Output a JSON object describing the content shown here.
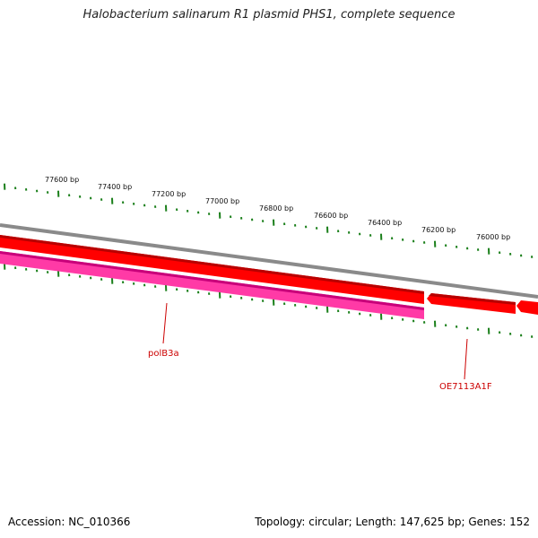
{
  "title": "Halobacterium salinarum R1 plasmid PHS1, complete sequence",
  "footer": {
    "accession": "Accession: NC_010366",
    "summary": "Topology: circular; Length: 147,625 bp; Genes: 152"
  },
  "ruler": {
    "labels": [
      "77600 bp",
      "77400 bp",
      "77200 bp",
      "77000 bp",
      "76800 bp",
      "76600 bp",
      "76400 bp",
      "76200 bp",
      "76000 bp"
    ],
    "color": "#1a7f1a"
  },
  "genes": [
    {
      "name": "polB3a",
      "strand": "reverse",
      "color": "#e0218a"
    },
    {
      "name": "OE7113A1F",
      "strand": "forward",
      "color": "#e00000"
    }
  ],
  "colors": {
    "backbone": "#8a8a8a",
    "forward": "#ff0000",
    "reverse": "#ff3aa6",
    "label": "#cc0000"
  }
}
